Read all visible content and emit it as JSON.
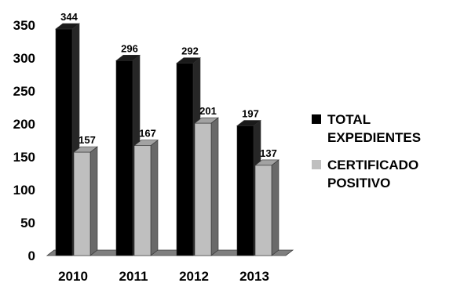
{
  "chart_data": {
    "type": "bar",
    "style": "3d-clustered-column",
    "categories": [
      "2010",
      "2011",
      "2012",
      "2013"
    ],
    "series": [
      {
        "name": "TOTAL EXPEDIENTES",
        "values": [
          344,
          296,
          292,
          197
        ],
        "color": "#000000"
      },
      {
        "name": "CERTIFICADO POSITIVO",
        "values": [
          157,
          167,
          201,
          137
        ],
        "color": "#bfbfbf"
      }
    ],
    "data_labels": true,
    "ylim": [
      0,
      350
    ],
    "yticks": [
      0,
      50,
      100,
      150,
      200,
      250,
      300,
      350
    ],
    "grid": false,
    "legend": "right",
    "title": "",
    "xlabel": "",
    "ylabel": ""
  },
  "legend": {
    "items": [
      {
        "lines": [
          "TOTAL",
          "EXPEDIENTES"
        ]
      },
      {
        "lines": [
          "CERTIFICADO",
          "POSITIVO"
        ]
      }
    ]
  }
}
